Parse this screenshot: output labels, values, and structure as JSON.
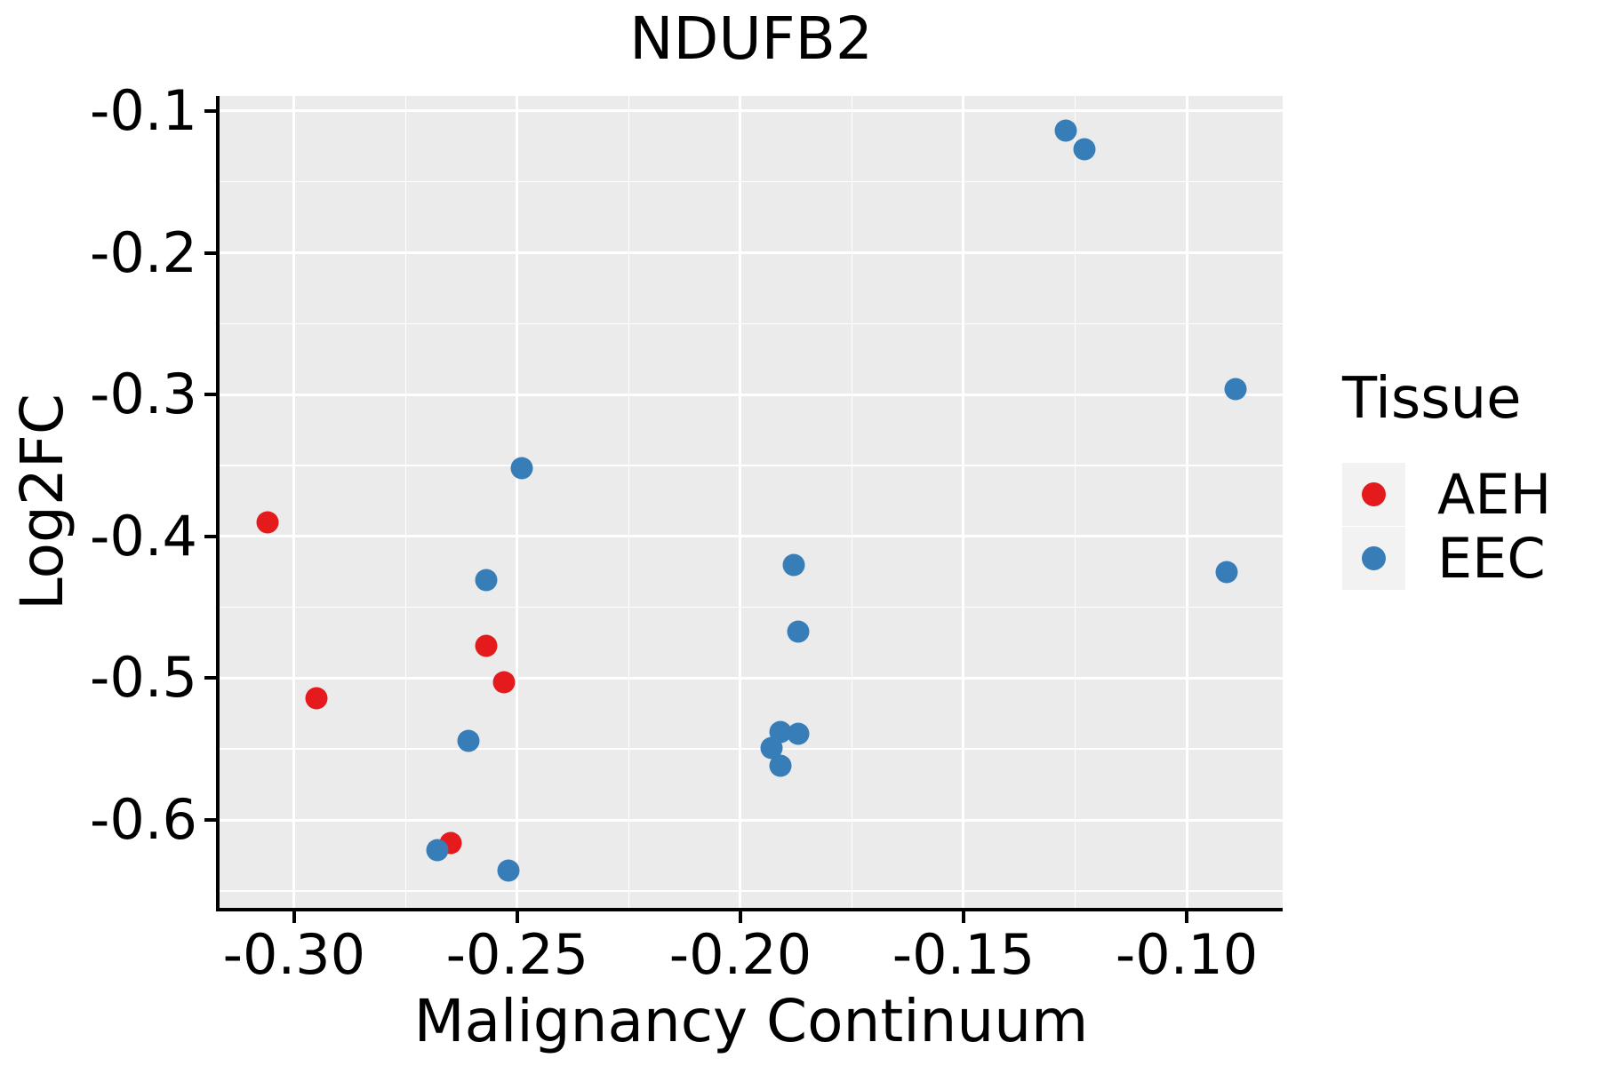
{
  "title": "NDUFB2",
  "axes": {
    "x": {
      "label": "Malignancy Continuum",
      "range": [
        -0.3167,
        -0.0785
      ],
      "major_ticks": [
        -0.3,
        -0.25,
        -0.2,
        -0.15,
        -0.1
      ],
      "tick_labels": [
        "-0.30",
        "-0.25",
        "-0.20",
        "-0.15",
        "-0.10"
      ],
      "minor_ticks": [
        -0.275,
        -0.225,
        -0.175,
        -0.125
      ]
    },
    "y": {
      "label": "Log2FC",
      "range": [
        -0.662,
        -0.0894
      ],
      "major_ticks": [
        -0.1,
        -0.2,
        -0.3,
        -0.4,
        -0.5,
        -0.6
      ],
      "tick_labels": [
        "-0.1",
        "-0.2",
        "-0.3",
        "-0.4",
        "-0.5",
        "-0.6"
      ],
      "minor_ticks": [
        -0.15,
        -0.25,
        -0.35,
        -0.45,
        -0.55,
        -0.65
      ]
    }
  },
  "legend": {
    "title": "Tissue",
    "items": [
      {
        "label": "AEH",
        "color": "#E41A1C"
      },
      {
        "label": "EEC",
        "color": "#377EB8"
      }
    ]
  },
  "colors": {
    "panel_background": "#EBEBEB",
    "gridline": "#FFFFFF",
    "axis": "#000000",
    "legend_key_background": "#F2F2F2",
    "aeh": "#E41A1C",
    "eec": "#377EB8"
  },
  "chart_data": {
    "type": "scatter",
    "title": "NDUFB2",
    "xlabel": "Malignancy Continuum",
    "ylabel": "Log2FC",
    "xlim": [
      -0.3167,
      -0.0785
    ],
    "ylim": [
      -0.662,
      -0.0894
    ],
    "grid": true,
    "legend_title": "Tissue",
    "legend_position": "right",
    "series": [
      {
        "name": "AEH",
        "color": "#E41A1C",
        "points": [
          [
            -0.306,
            -0.39
          ],
          [
            -0.295,
            -0.514
          ],
          [
            -0.257,
            -0.477
          ],
          [
            -0.253,
            -0.503
          ],
          [
            -0.265,
            -0.616
          ]
        ]
      },
      {
        "name": "EEC",
        "color": "#377EB8",
        "points": [
          [
            -0.249,
            -0.352
          ],
          [
            -0.257,
            -0.431
          ],
          [
            -0.261,
            -0.544
          ],
          [
            -0.268,
            -0.621
          ],
          [
            -0.252,
            -0.636
          ],
          [
            -0.188,
            -0.42
          ],
          [
            -0.187,
            -0.467
          ],
          [
            -0.191,
            -0.538
          ],
          [
            -0.187,
            -0.539
          ],
          [
            -0.193,
            -0.549
          ],
          [
            -0.191,
            -0.562
          ],
          [
            -0.127,
            -0.114
          ],
          [
            -0.123,
            -0.127
          ],
          [
            -0.089,
            -0.296
          ],
          [
            -0.091,
            -0.425
          ]
        ]
      }
    ]
  }
}
